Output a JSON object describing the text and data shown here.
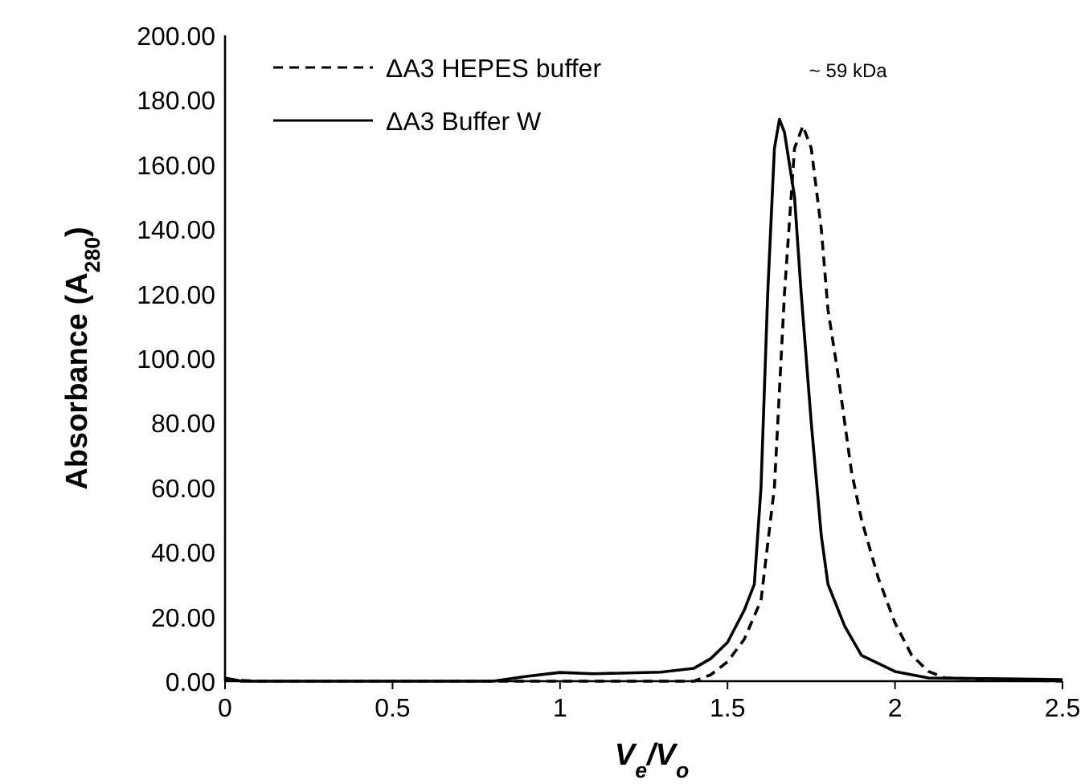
{
  "chart_data": {
    "type": "line",
    "xlabel": "V$_{e}$/V$_{o}$",
    "ylabel": "Absorbance (A$_{280}$)",
    "xlim": [
      0,
      2.5
    ],
    "xticks": [
      0,
      0.5,
      1,
      1.5,
      2,
      2.5
    ],
    "ylim": [
      0,
      200
    ],
    "yticks": [
      {
        "value": 0,
        "label": "0.00"
      },
      {
        "value": 20,
        "label": "20.00"
      },
      {
        "value": 40,
        "label": "40.00"
      },
      {
        "value": 60,
        "label": "60.00"
      },
      {
        "value": 80,
        "label": "80.00"
      },
      {
        "value": 100,
        "label": "100.00"
      },
      {
        "value": 120,
        "label": "120.00"
      },
      {
        "value": 140,
        "label": "140.00"
      },
      {
        "value": 160,
        "label": "160.00"
      },
      {
        "value": 180,
        "label": "180.00"
      },
      {
        "value": 200,
        "label": "200.00"
      }
    ],
    "grid": false,
    "legend": "top left",
    "marker": "none",
    "annotations": [
      "~ 59 kDa"
    ],
    "series": [
      {
        "name": "ΔA3 HEPES buffer",
        "color": "#000000",
        "line_style": "dashed",
        "x": [
          0,
          0.1,
          1.4,
          1.45,
          1.5,
          1.55,
          1.6,
          1.64,
          1.67,
          1.7,
          1.725,
          1.75,
          1.78,
          1.8,
          1.83,
          1.87,
          1.9,
          1.95,
          2,
          2.05,
          2.1,
          2.15,
          2.5
        ],
        "values": [
          0.5,
          0,
          0,
          2,
          6,
          13,
          25,
          60,
          120,
          165,
          172,
          165,
          140,
          115,
          95,
          65,
          50,
          32,
          18,
          8,
          3,
          1,
          0
        ]
      },
      {
        "name": "ΔA3 Buffer W",
        "color": "#000000",
        "line_style": "solid",
        "x": [
          0,
          0.05,
          0.8,
          0.9,
          1,
          1.1,
          1.3,
          1.4,
          1.45,
          1.5,
          1.55,
          1.58,
          1.6,
          1.62,
          1.64,
          1.655,
          1.67,
          1.7,
          1.72,
          1.75,
          1.78,
          1.8,
          1.85,
          1.9,
          2,
          2.1,
          2.5
        ],
        "values": [
          1,
          0,
          0,
          1.5,
          2.7,
          2.3,
          2.8,
          4,
          7,
          12,
          22,
          30,
          60,
          120,
          165,
          174,
          170,
          150,
          120,
          80,
          45,
          30,
          17,
          8,
          3,
          1,
          0.5
        ]
      }
    ]
  }
}
